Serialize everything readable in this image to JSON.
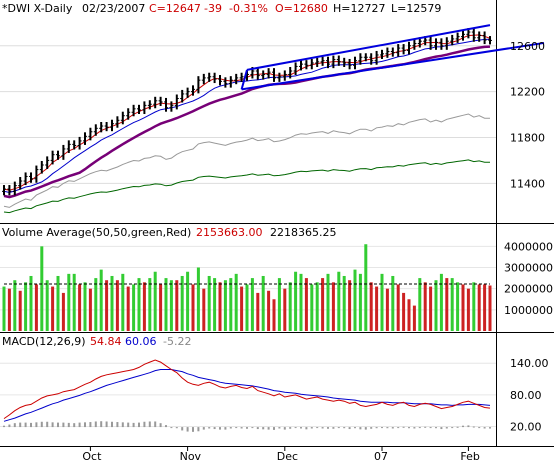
{
  "header": {
    "symbol": "*DWI X-Daily",
    "date": "02/23/2007",
    "close": "C=12647",
    "change": "-39",
    "change_pct": "-0.31%",
    "open": "O=12680",
    "high": "H=12727",
    "low": "L=12579"
  },
  "volume_header": {
    "label": "Volume Average(50,50,green,Red)",
    "value1": "2153663.00",
    "value2": "2218365.25"
  },
  "macd_header": {
    "label": "MACD(12,26,9)",
    "macd": "54.84",
    "signal": "60.06",
    "hist": "-5.22"
  },
  "colors": {
    "up": "#33cc33",
    "down": "#cc2222",
    "bar": "#000000",
    "ma_fast_red": "#cc0000",
    "ma_blue": "#0000cc",
    "ma_purple": "#770077",
    "ma_gray": "#999999",
    "ma_green": "#006600",
    "trend": "#0000dd"
  },
  "chart_data": [
    {
      "type": "line",
      "panel": "price",
      "y_ticks": [
        11400,
        11800,
        12200,
        12600
      ],
      "ylim": [
        11080,
        12860
      ],
      "x_labels": [
        "Oct",
        "Nov",
        "Dec",
        "07",
        "Feb"
      ],
      "series": [
        {
          "values": [
            11350,
            11330,
            11380,
            11420,
            11460,
            11440,
            11520,
            11560,
            11600,
            11650,
            11640,
            11700,
            11740,
            11730,
            11770,
            11810,
            11850,
            11880,
            11900,
            11890,
            11920,
            11950,
            11990,
            12020,
            12050,
            12040,
            12080,
            12090,
            12120,
            12110,
            12060,
            12080,
            12140,
            12180,
            12200,
            12220,
            12300,
            12320,
            12330,
            12310,
            12290,
            12270,
            12300,
            12320,
            12330,
            12350,
            12380,
            12340,
            12350,
            12370,
            12320,
            12330,
            12350,
            12380,
            12420,
            12440,
            12430,
            12450,
            12460,
            12470,
            12440,
            12480,
            12460,
            12450,
            12430,
            12470,
            12500,
            12500,
            12470,
            12520,
            12530,
            12550,
            12540,
            12580,
            12560,
            12600,
            12620,
            12640,
            12650,
            12600,
            12630,
            12600,
            12640,
            12660,
            12680,
            12700,
            12720,
            12670,
            12690,
            12650,
            12647
          ]
        }
      ]
    },
    {
      "type": "bar",
      "panel": "volume",
      "y_ticks": [
        1000000,
        2000000,
        3000000,
        4000000
      ],
      "ylim": [
        0,
        4300000
      ],
      "average": 2218365.25,
      "series": [
        {
          "values": [
            2100000,
            2000000,
            2400000,
            1900000,
            2300000,
            2600000,
            2200000,
            4000000,
            2400000,
            2100000,
            2600000,
            1800000,
            2700000,
            2700000,
            2200000,
            2300000,
            2000000,
            2500000,
            2900000,
            2400000,
            2600000,
            2400000,
            2700000,
            2100000,
            2200000,
            2500000,
            2300000,
            2500000,
            2800000,
            2200000,
            2500000,
            2400000,
            2400000,
            2600000,
            2800000,
            2200000,
            3000000,
            2000000,
            2600000,
            2500000,
            2300000,
            2400000,
            2500000,
            2700000,
            2100000,
            2200000,
            2500000,
            1800000,
            2600000,
            1900000,
            1500000,
            2500000,
            2000000,
            2300000,
            2800000,
            2700000,
            2500000,
            2200000,
            2300000,
            2500000,
            2700000,
            2300000,
            2800000,
            2600000,
            2400000,
            2900000,
            2700000,
            4100000,
            2300000,
            2100000,
            2700000,
            2000000,
            2600000,
            2200000,
            1800000,
            1500000,
            1200000,
            2500000,
            2300000,
            2100000,
            2400000,
            2700000,
            2500000,
            2500000,
            2300000,
            2200000,
            2000000,
            2300000,
            2200000,
            2200000,
            2150000
          ]
        },
        {
          "values": [
            "u",
            "d",
            "u",
            "d",
            "u",
            "u",
            "d",
            "u",
            "u",
            "d",
            "u",
            "d",
            "u",
            "u",
            "d",
            "u",
            "d",
            "u",
            "u",
            "d",
            "u",
            "d",
            "u",
            "d",
            "u",
            "u",
            "d",
            "u",
            "u",
            "d",
            "u",
            "u",
            "d",
            "u",
            "u",
            "d",
            "u",
            "d",
            "u",
            "u",
            "d",
            "u",
            "u",
            "u",
            "d",
            "u",
            "u",
            "d",
            "u",
            "d",
            "d",
            "u",
            "d",
            "u",
            "u",
            "u",
            "d",
            "u",
            "u",
            "d",
            "u",
            "d",
            "u",
            "u",
            "d",
            "u",
            "u",
            "u",
            "d",
            "d",
            "u",
            "d",
            "u",
            "d",
            "d",
            "d",
            "d",
            "u",
            "d",
            "d",
            "u",
            "u",
            "d",
            "u",
            "u",
            "d",
            "d",
            "u",
            "d",
            "d",
            "d"
          ]
        }
      ]
    },
    {
      "type": "line",
      "panel": "macd",
      "y_ticks": [
        20,
        80,
        140
      ],
      "ylim": [
        -15,
        165
      ],
      "series": [
        {
          "values": [
            35,
            42,
            50,
            56,
            60,
            62,
            68,
            74,
            78,
            80,
            82,
            86,
            88,
            90,
            95,
            100,
            104,
            110,
            115,
            118,
            120,
            122,
            124,
            126,
            128,
            132,
            138,
            142,
            146,
            142,
            135,
            128,
            122,
            112,
            104,
            100,
            98,
            102,
            104,
            100,
            95,
            93,
            96,
            98,
            94,
            92,
            96,
            88,
            85,
            82,
            78,
            82,
            76,
            78,
            80,
            76,
            72,
            74,
            76,
            72,
            70,
            68,
            70,
            68,
            64,
            66,
            60,
            58,
            60,
            62,
            66,
            62,
            60,
            64,
            66,
            60,
            58,
            62,
            64,
            62,
            58,
            54,
            56,
            58,
            62,
            66,
            68,
            64,
            60,
            56,
            54.84
          ]
        },
        {
          "values": [
            30,
            33,
            36,
            40,
            44,
            47,
            51,
            55,
            59,
            63,
            66,
            70,
            73,
            76,
            79,
            83,
            86,
            90,
            94,
            98,
            101,
            104,
            107,
            110,
            113,
            116,
            119,
            122,
            126,
            128,
            128,
            128,
            126,
            124,
            120,
            117,
            113,
            111,
            109,
            107,
            104,
            102,
            101,
            100,
            99,
            98,
            97,
            95,
            93,
            91,
            88,
            87,
            85,
            84,
            83,
            81,
            80,
            79,
            78,
            77,
            76,
            74,
            73,
            72,
            71,
            70,
            68,
            67,
            66,
            66,
            66,
            66,
            65,
            65,
            65,
            64,
            63,
            63,
            63,
            63,
            62,
            61,
            61,
            60,
            61,
            61,
            62,
            62,
            62,
            61,
            60.06
          ]
        },
        {
          "values": [
            5,
            9,
            14,
            16,
            16,
            15,
            17,
            19,
            19,
            17,
            16,
            16,
            15,
            14,
            16,
            17,
            18,
            20,
            21,
            20,
            19,
            18,
            17,
            16,
            15,
            16,
            19,
            20,
            20,
            14,
            7,
            0,
            -4,
            -12,
            -16,
            -17,
            -15,
            -9,
            -5,
            -7,
            -9,
            -9,
            -5,
            -2,
            -5,
            -6,
            -1,
            -7,
            -8,
            -9,
            -10,
            -5,
            -9,
            -6,
            -3,
            -5,
            -8,
            -5,
            -2,
            -5,
            -6,
            -6,
            -3,
            -4,
            -7,
            -4,
            -8,
            -9,
            -6,
            -4,
            0,
            -4,
            -5,
            -1,
            1,
            -4,
            -5,
            -1,
            1,
            -1,
            -4,
            -7,
            -5,
            -2,
            1,
            5,
            6,
            2,
            -2,
            -5,
            -5.22
          ]
        }
      ]
    }
  ]
}
